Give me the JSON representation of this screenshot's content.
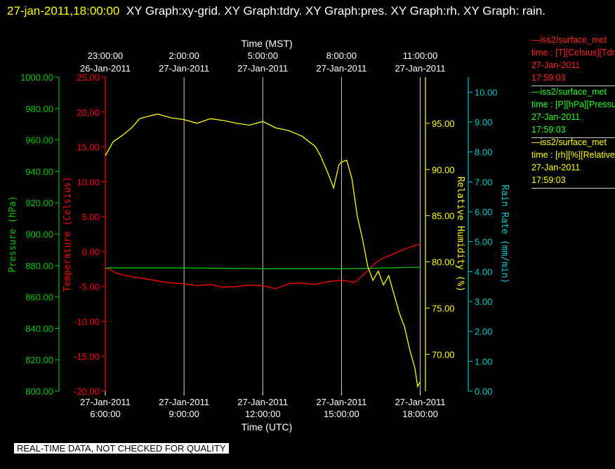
{
  "header": {
    "timestamp": "27-jan-2011,18:00:00",
    "graphs": "XY Graph:xy-grid.  XY Graph:tdry.  XY Graph:pres.  XY Graph:rh.  XY Graph: rain."
  },
  "disclaimer": "REAL-TIME DATA, NOT CHECKED FOR QUALITY",
  "colors": {
    "temperature": "#ff0000",
    "pressure": "#00c800",
    "humidity": "#ffff00",
    "rain": "#00c8c8",
    "grid": "#ffffff"
  },
  "legend": [
    {
      "line1": "—iss2/surface_met",
      "line2": "time : [T][Celsius][Tdry]",
      "line3": "27-Jan-2011",
      "line4": "17:59:03",
      "color": "#ff0000"
    },
    {
      "line1": "—iss2/surface_met",
      "line2": "time : [P][hPa][Pressure]",
      "line3": "27-Jan-2011",
      "line4": "17:59:03",
      "color": "#00c800"
    },
    {
      "line1": "—iss2/surface_met",
      "line2": "time : [rh][%][Relative Humidity]",
      "line3": "27-Jan-2011",
      "line4": "17:59:03",
      "color": "#ffff00"
    }
  ],
  "chart_data": {
    "type": "line",
    "xlabel_bottom": "Time (UTC)",
    "xlabel_top": "Time (MST)",
    "xlim_hours_utc": [
      6,
      18.2
    ],
    "bottom_ticks": [
      {
        "date": "27-Jan-2011",
        "time": "6:00:00",
        "hour": 6
      },
      {
        "date": "27-Jan-2011",
        "time": "9:00:00",
        "hour": 9
      },
      {
        "date": "27-Jan-2011",
        "time": "12:00:00",
        "hour": 12
      },
      {
        "date": "27-Jan-2011",
        "time": "15:00:00",
        "hour": 15
      },
      {
        "date": "27-Jan-2011",
        "time": "18:00:00",
        "hour": 18
      }
    ],
    "top_ticks": [
      {
        "time": "23:00:00",
        "date": "26-Jan-2011",
        "hour": 6
      },
      {
        "time": "2:00:00",
        "date": "27-Jan-2011",
        "hour": 9
      },
      {
        "time": "5:00:00",
        "date": "27-Jan-2011",
        "hour": 12
      },
      {
        "time": "8:00:00",
        "date": "27-Jan-2011",
        "hour": 15
      },
      {
        "time": "11:00:00",
        "date": "27-Jan-2011",
        "hour": 18
      }
    ],
    "grid": true,
    "axes": {
      "pressure": {
        "label": "Pressure (hPa)",
        "ylim": [
          800,
          1000
        ],
        "ticks": [
          "800.00",
          "820.00",
          "840.00",
          "860.00",
          "880.00",
          "900.00",
          "920.00",
          "940.00",
          "960.00",
          "980.00",
          "1000.00"
        ]
      },
      "temperature": {
        "label": "Temperature (Celsius)",
        "ylim": [
          -20,
          25
        ],
        "ticks": [
          "-20.00",
          "-15.00",
          "-10.00",
          "-5.00",
          "0.00",
          "5.00",
          "10.00",
          "15.00",
          "20.00",
          "25.00"
        ]
      },
      "humidity": {
        "label": "Relative Humidity (%)",
        "ylim": [
          66,
          100
        ],
        "ticks": [
          "70.00",
          "75.00",
          "80.00",
          "85.00",
          "90.00",
          "95.00"
        ]
      },
      "rain": {
        "label": "Rain Rate (mm/min)",
        "ylim": [
          0,
          10.5
        ],
        "ticks": [
          "0.00",
          "1.00",
          "2.00",
          "3.00",
          "4.00",
          "5.00",
          "6.00",
          "7.00",
          "8.00",
          "9.00",
          "10.00"
        ]
      }
    },
    "series": [
      {
        "name": "Tdry",
        "axis": "temperature",
        "x": [
          6,
          6.5,
          7,
          7.5,
          8,
          8.5,
          9,
          9.5,
          10,
          10.5,
          11,
          11.5,
          12,
          12.5,
          13,
          13.5,
          14,
          14.5,
          15,
          15.5,
          15.9,
          16.3,
          16.6,
          17,
          17.5,
          18
        ],
        "y": [
          -2.3,
          -3.2,
          -3.6,
          -3.9,
          -4.2,
          -4.5,
          -4.6,
          -4.9,
          -4.7,
          -5.1,
          -5.0,
          -4.8,
          -4.9,
          -5.3,
          -4.6,
          -4.5,
          -4.7,
          -4.3,
          -4.1,
          -4.4,
          -3.1,
          -1.6,
          -0.9,
          -0.3,
          0.5,
          1.1
        ]
      },
      {
        "name": "Pressure",
        "axis": "pressure",
        "x": [
          6,
          9,
          12,
          15,
          16,
          17,
          18
        ],
        "y": [
          878.5,
          878.5,
          878.0,
          878.0,
          878.2,
          878.6,
          879.0
        ]
      },
      {
        "name": "RH",
        "axis": "humidity",
        "x": [
          6,
          6.3,
          6.7,
          7,
          7.3,
          7.7,
          8,
          8.5,
          9,
          9.5,
          10,
          10.5,
          11,
          11.5,
          12,
          12.5,
          13,
          13.5,
          14,
          14.2,
          14.5,
          14.7,
          14.9,
          15,
          15.2,
          15.4,
          15.6,
          15.8,
          16,
          16.2,
          16.4,
          16.6,
          16.8,
          17,
          17.2,
          17.4,
          17.6,
          17.8,
          17.9,
          18
        ],
        "y": [
          91.5,
          93.0,
          93.8,
          94.5,
          95.5,
          95.8,
          96.0,
          95.6,
          95.4,
          95.0,
          95.5,
          95.3,
          95.0,
          94.8,
          95.2,
          94.5,
          94.2,
          93.6,
          92.5,
          91.5,
          89.5,
          88.0,
          90.5,
          90.8,
          91.0,
          89.0,
          85.0,
          82.5,
          79.5,
          78.0,
          79.0,
          77.5,
          78.5,
          76.5,
          74.5,
          73.0,
          70.5,
          68.5,
          66.5,
          67.0
        ]
      },
      {
        "name": "Rain",
        "axis": "rain",
        "x": [],
        "y": []
      }
    ]
  }
}
